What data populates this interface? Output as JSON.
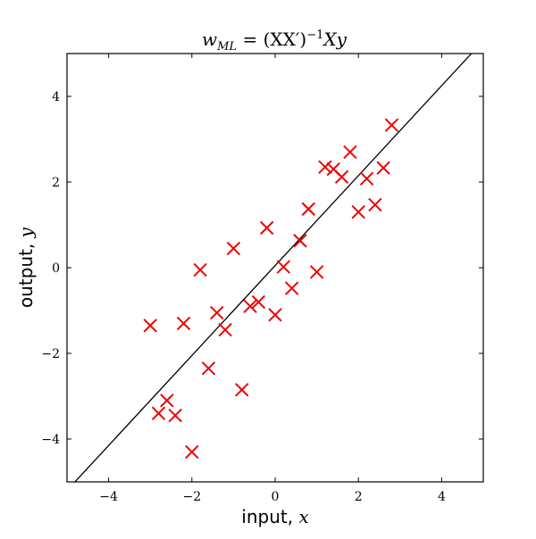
{
  "chart_data": {
    "type": "scatter",
    "title": "w_ML = (XX′)⁻¹Xy",
    "title_parts": {
      "w": "w",
      "sub": "ML",
      "rest": " = (XX′)",
      "sup": "−1",
      "tail": "Xy"
    },
    "xlabel": "input, x",
    "xlabel_parts": {
      "text": "input, ",
      "var": "x"
    },
    "ylabel": "output, y",
    "ylabel_parts": {
      "text": "output, ",
      "var": "y"
    },
    "xlim": [
      -5,
      5
    ],
    "ylim": [
      -5,
      5
    ],
    "xticks": [
      -4,
      -2,
      0,
      2,
      4
    ],
    "yticks": [
      -4,
      -2,
      0,
      2,
      4
    ],
    "xtick_labels": [
      "−4",
      "−2",
      "0",
      "2",
      "4"
    ],
    "ytick_labels": [
      "−4",
      "−2",
      "0",
      "2",
      "4"
    ],
    "grid": false,
    "marker": "x",
    "marker_color": "#ee0000",
    "line_color": "#000000",
    "fit_line": {
      "slope": 1.05,
      "intercept": 0.05
    },
    "points": [
      {
        "x": -3.0,
        "y": -1.35
      },
      {
        "x": -2.8,
        "y": -3.4
      },
      {
        "x": -2.6,
        "y": -3.1
      },
      {
        "x": -2.4,
        "y": -3.45
      },
      {
        "x": -2.2,
        "y": -1.3
      },
      {
        "x": -2.0,
        "y": -4.3
      },
      {
        "x": -1.8,
        "y": -0.05
      },
      {
        "x": -1.6,
        "y": -2.35
      },
      {
        "x": -1.4,
        "y": -1.05
      },
      {
        "x": -1.2,
        "y": -1.45
      },
      {
        "x": -1.0,
        "y": 0.45
      },
      {
        "x": -0.8,
        "y": -2.85
      },
      {
        "x": -0.6,
        "y": -0.9
      },
      {
        "x": -0.4,
        "y": -0.8
      },
      {
        "x": -0.2,
        "y": 0.93
      },
      {
        "x": 0.0,
        "y": -1.1
      },
      {
        "x": 0.2,
        "y": 0.02
      },
      {
        "x": 0.4,
        "y": -0.48
      },
      {
        "x": 0.6,
        "y": 0.63
      },
      {
        "x": 0.8,
        "y": 1.37
      },
      {
        "x": 1.0,
        "y": -0.1
      },
      {
        "x": 1.2,
        "y": 2.35
      },
      {
        "x": 1.4,
        "y": 2.3
      },
      {
        "x": 1.6,
        "y": 2.12
      },
      {
        "x": 1.8,
        "y": 2.7
      },
      {
        "x": 2.0,
        "y": 1.3
      },
      {
        "x": 2.2,
        "y": 2.08
      },
      {
        "x": 2.4,
        "y": 1.47
      },
      {
        "x": 2.6,
        "y": 2.33
      },
      {
        "x": 2.8,
        "y": 3.33
      }
    ]
  }
}
